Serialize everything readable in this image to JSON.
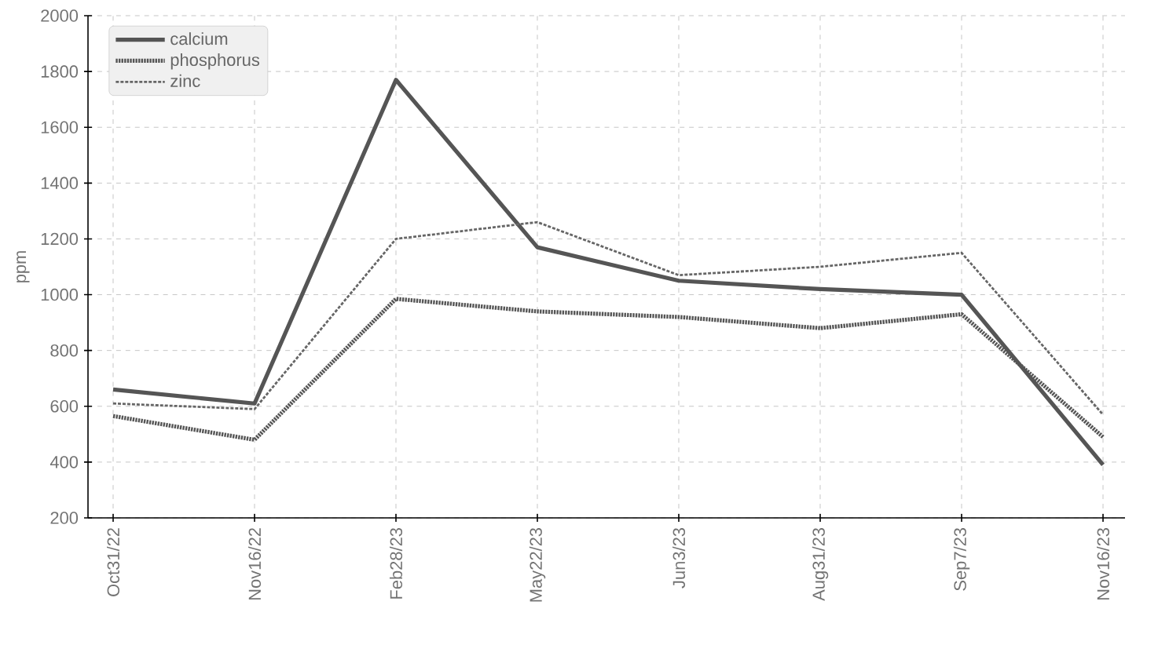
{
  "chart_data": {
    "type": "line",
    "ylabel": "ppm",
    "categories": [
      "Oct31/22",
      "Nov16/22",
      "Feb28/23",
      "May22/23",
      "Jun3/23",
      "Aug31/23",
      "Sep7/23",
      "Nov16/23"
    ],
    "series": [
      {
        "name": "calcium",
        "color": "#555555",
        "line_style": "solid",
        "values": [
          660,
          610,
          1770,
          1170,
          1050,
          1020,
          1000,
          390
        ]
      },
      {
        "name": "phosphorus",
        "color": "#555555",
        "line_style": "dotted",
        "values": [
          565,
          480,
          985,
          940,
          920,
          880,
          930,
          490
        ]
      },
      {
        "name": "zinc",
        "color": "#666666",
        "line_style": "dashed",
        "values": [
          610,
          590,
          1200,
          1260,
          1070,
          1100,
          1150,
          570
        ]
      }
    ],
    "ylim": [
      200,
      2000
    ],
    "yticks": [
      200,
      400,
      600,
      800,
      1000,
      1200,
      1400,
      1600,
      1800,
      2000
    ],
    "grid": true,
    "legend": "top left",
    "marker": "none"
  }
}
